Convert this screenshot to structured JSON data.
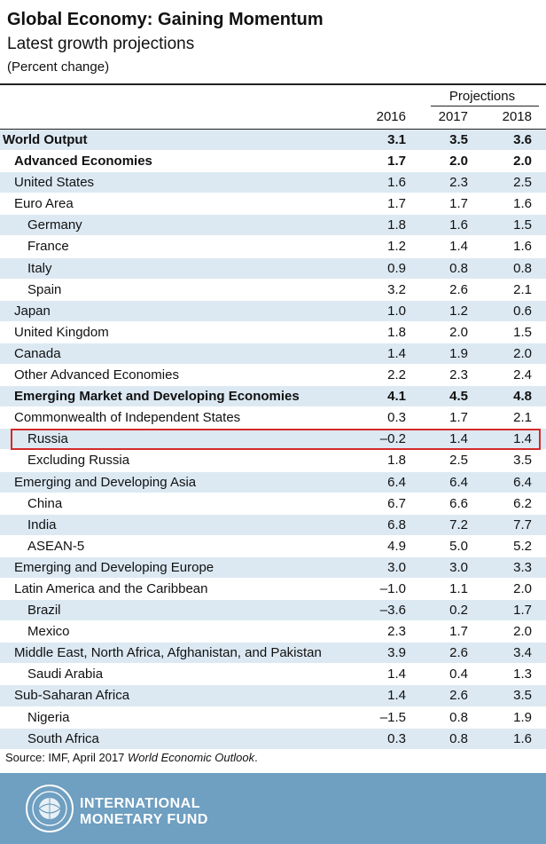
{
  "chart_data": {
    "type": "table",
    "title": "Global Economy: Gaining Momentum",
    "subtitle": "Latest growth projections",
    "units": "(Percent change)",
    "projections_label": "Projections",
    "columns": [
      "2016",
      "2017",
      "2018"
    ],
    "rows": [
      {
        "label": "World Output",
        "level": 0,
        "bold": true,
        "values": [
          "3.1",
          "3.5",
          "3.6"
        ]
      },
      {
        "label": "Advanced Economies",
        "level": 1,
        "bold": true,
        "values": [
          "1.7",
          "2.0",
          "2.0"
        ]
      },
      {
        "label": "United States",
        "level": 1,
        "bold": false,
        "values": [
          "1.6",
          "2.3",
          "2.5"
        ]
      },
      {
        "label": "Euro Area",
        "level": 1,
        "bold": false,
        "values": [
          "1.7",
          "1.7",
          "1.6"
        ]
      },
      {
        "label": "Germany",
        "level": 2,
        "bold": false,
        "values": [
          "1.8",
          "1.6",
          "1.5"
        ]
      },
      {
        "label": "France",
        "level": 2,
        "bold": false,
        "values": [
          "1.2",
          "1.4",
          "1.6"
        ]
      },
      {
        "label": "Italy",
        "level": 2,
        "bold": false,
        "values": [
          "0.9",
          "0.8",
          "0.8"
        ]
      },
      {
        "label": "Spain",
        "level": 2,
        "bold": false,
        "values": [
          "3.2",
          "2.6",
          "2.1"
        ]
      },
      {
        "label": "Japan",
        "level": 1,
        "bold": false,
        "values": [
          "1.0",
          "1.2",
          "0.6"
        ]
      },
      {
        "label": "United Kingdom",
        "level": 1,
        "bold": false,
        "values": [
          "1.8",
          "2.0",
          "1.5"
        ]
      },
      {
        "label": "Canada",
        "level": 1,
        "bold": false,
        "values": [
          "1.4",
          "1.9",
          "2.0"
        ]
      },
      {
        "label": "Other Advanced Economies",
        "level": 1,
        "bold": false,
        "values": [
          "2.2",
          "2.3",
          "2.4"
        ]
      },
      {
        "label": "Emerging Market and Developing Economies",
        "level": 1,
        "bold": true,
        "values": [
          "4.1",
          "4.5",
          "4.8"
        ]
      },
      {
        "label": "Commonwealth of Independent States",
        "level": 1,
        "bold": false,
        "values": [
          "0.3",
          "1.7",
          "2.1"
        ]
      },
      {
        "label": "Russia",
        "level": 2,
        "bold": false,
        "highlight": true,
        "values": [
          "–0.2",
          "1.4",
          "1.4"
        ]
      },
      {
        "label": "Excluding Russia",
        "level": 2,
        "bold": false,
        "values": [
          "1.8",
          "2.5",
          "3.5"
        ]
      },
      {
        "label": "Emerging and Developing Asia",
        "level": 1,
        "bold": false,
        "values": [
          "6.4",
          "6.4",
          "6.4"
        ]
      },
      {
        "label": "China",
        "level": 2,
        "bold": false,
        "values": [
          "6.7",
          "6.6",
          "6.2"
        ]
      },
      {
        "label": "India",
        "level": 2,
        "bold": false,
        "values": [
          "6.8",
          "7.2",
          "7.7"
        ]
      },
      {
        "label": "ASEAN-5",
        "level": 2,
        "bold": false,
        "values": [
          "4.9",
          "5.0",
          "5.2"
        ]
      },
      {
        "label": "Emerging and Developing Europe",
        "level": 1,
        "bold": false,
        "values": [
          "3.0",
          "3.0",
          "3.3"
        ]
      },
      {
        "label": "Latin America and the Caribbean",
        "level": 1,
        "bold": false,
        "values": [
          "–1.0",
          "1.1",
          "2.0"
        ]
      },
      {
        "label": "Brazil",
        "level": 2,
        "bold": false,
        "values": [
          "–3.6",
          "0.2",
          "1.7"
        ]
      },
      {
        "label": "Mexico",
        "level": 2,
        "bold": false,
        "values": [
          "2.3",
          "1.7",
          "2.0"
        ]
      },
      {
        "label": "Middle East, North Africa, Afghanistan, and Pakistan",
        "level": 1,
        "bold": false,
        "values": [
          "3.9",
          "2.6",
          "3.4"
        ]
      },
      {
        "label": "Saudi Arabia",
        "level": 2,
        "bold": false,
        "values": [
          "1.4",
          "0.4",
          "1.3"
        ]
      },
      {
        "label": "Sub-Saharan Africa",
        "level": 1,
        "bold": false,
        "values": [
          "1.4",
          "2.6",
          "3.5"
        ]
      },
      {
        "label": "Nigeria",
        "level": 2,
        "bold": false,
        "values": [
          "–1.5",
          "0.8",
          "1.9"
        ]
      },
      {
        "label": "South Africa",
        "level": 2,
        "bold": false,
        "values": [
          "0.3",
          "0.8",
          "1.6"
        ]
      }
    ],
    "source_prefix": "Source: IMF, April 2017 ",
    "source_italic": "World Economic Outlook",
    "source_suffix": "."
  },
  "footer": {
    "org_line1": "INTERNATIONAL",
    "org_line2": "MONETARY FUND",
    "seal_icon": "imf-seal-icon",
    "bg_color": "#6f9fc1"
  },
  "colors": {
    "band": "#dce9f3",
    "highlight": "#d42a2a"
  }
}
